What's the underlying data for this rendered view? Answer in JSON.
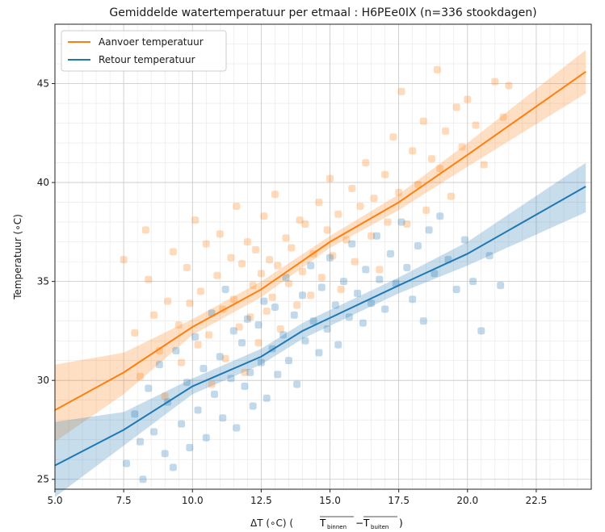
{
  "chart_data": {
    "type": "scatter",
    "title": "Gemiddelde watertemperatuur per etmaal : H6PEe0IX (n=336 stookdagen)",
    "xlabel": "ΔT (∘C) (T̅binnen − T̅buiten)",
    "xlabel_main": "ΔT (∘C) (",
    "xlabel_sub1": "binnen",
    "xlabel_sub2": "buiten",
    "ylabel": "Temperatuur (∘C)",
    "xlim": [
      5.0,
      24.5
    ],
    "ylim": [
      24.5,
      48.0
    ],
    "xticks": [
      "5.0",
      "7.5",
      "10.0",
      "12.5",
      "15.0",
      "17.5",
      "20.0",
      "22.5"
    ],
    "yticks": [
      "25",
      "30",
      "35",
      "40",
      "45"
    ],
    "grid": true,
    "minor_grid": true,
    "legend_position": "top-left",
    "colors": {
      "aanvoer": "#ff7f0e",
      "retour": "#1f77b4"
    },
    "series": [
      {
        "name": "Aanvoer temperatuur",
        "kind": "scatter+fit",
        "fit_line": {
          "x": [
            5.0,
            7.5,
            10.0,
            12.5,
            15.0,
            17.5,
            20.0,
            24.3
          ],
          "y": [
            28.5,
            30.4,
            32.7,
            34.6,
            37.0,
            39.0,
            41.4,
            45.6
          ]
        },
        "band_upper": [
          30.8,
          31.4,
          33.1,
          35.0,
          37.3,
          39.4,
          42.0,
          46.7
        ],
        "band_lower": [
          26.9,
          29.3,
          32.3,
          34.2,
          36.7,
          38.6,
          40.8,
          44.5
        ],
        "points": [
          [
            7.5,
            36.1
          ],
          [
            7.9,
            32.4
          ],
          [
            8.1,
            30.2
          ],
          [
            8.3,
            37.6
          ],
          [
            8.4,
            35.1
          ],
          [
            8.6,
            33.3
          ],
          [
            8.8,
            31.5
          ],
          [
            9.0,
            29.2
          ],
          [
            9.1,
            34.0
          ],
          [
            9.3,
            36.5
          ],
          [
            9.5,
            32.8
          ],
          [
            9.6,
            30.9
          ],
          [
            9.8,
            35.7
          ],
          [
            9.9,
            33.9
          ],
          [
            10.1,
            38.1
          ],
          [
            10.2,
            31.8
          ],
          [
            10.3,
            34.5
          ],
          [
            10.5,
            36.9
          ],
          [
            10.6,
            32.3
          ],
          [
            10.7,
            29.8
          ],
          [
            10.9,
            35.3
          ],
          [
            11.0,
            37.4
          ],
          [
            11.1,
            33.6
          ],
          [
            11.2,
            31.1
          ],
          [
            11.4,
            36.2
          ],
          [
            11.5,
            34.1
          ],
          [
            11.6,
            38.8
          ],
          [
            11.7,
            32.7
          ],
          [
            11.8,
            35.9
          ],
          [
            11.9,
            30.4
          ],
          [
            12.0,
            37.0
          ],
          [
            12.1,
            33.2
          ],
          [
            12.2,
            34.8
          ],
          [
            12.3,
            36.6
          ],
          [
            12.4,
            31.9
          ],
          [
            12.5,
            35.4
          ],
          [
            12.6,
            38.3
          ],
          [
            12.7,
            33.5
          ],
          [
            12.8,
            36.1
          ],
          [
            12.9,
            34.2
          ],
          [
            13.0,
            39.4
          ],
          [
            13.1,
            35.8
          ],
          [
            13.2,
            32.6
          ],
          [
            13.4,
            37.2
          ],
          [
            13.5,
            34.9
          ],
          [
            13.6,
            36.7
          ],
          [
            13.8,
            33.8
          ],
          [
            13.9,
            38.1
          ],
          [
            14.0,
            35.5
          ],
          [
            14.1,
            37.9
          ],
          [
            14.3,
            34.3
          ],
          [
            14.4,
            36.4
          ],
          [
            14.6,
            39.0
          ],
          [
            14.7,
            35.2
          ],
          [
            14.9,
            37.6
          ],
          [
            15.0,
            40.2
          ],
          [
            15.1,
            36.3
          ],
          [
            15.3,
            38.4
          ],
          [
            15.4,
            34.6
          ],
          [
            15.6,
            37.1
          ],
          [
            15.8,
            39.7
          ],
          [
            15.9,
            36.0
          ],
          [
            16.1,
            38.8
          ],
          [
            16.3,
            41.0
          ],
          [
            16.5,
            37.3
          ],
          [
            16.6,
            39.2
          ],
          [
            16.8,
            35.6
          ],
          [
            17.0,
            40.4
          ],
          [
            17.1,
            38.0
          ],
          [
            17.3,
            42.3
          ],
          [
            17.5,
            39.5
          ],
          [
            17.6,
            44.6
          ],
          [
            17.8,
            37.9
          ],
          [
            18.0,
            41.6
          ],
          [
            18.2,
            39.9
          ],
          [
            18.4,
            43.1
          ],
          [
            18.5,
            38.6
          ],
          [
            18.7,
            41.2
          ],
          [
            18.9,
            45.7
          ],
          [
            19.0,
            40.7
          ],
          [
            19.2,
            42.6
          ],
          [
            19.4,
            39.3
          ],
          [
            19.6,
            43.8
          ],
          [
            19.8,
            41.8
          ],
          [
            20.0,
            44.2
          ],
          [
            20.3,
            42.9
          ],
          [
            20.6,
            40.9
          ],
          [
            21.0,
            45.1
          ],
          [
            21.3,
            43.3
          ],
          [
            21.5,
            44.9
          ]
        ]
      },
      {
        "name": "Retour temperatuur",
        "kind": "scatter+fit",
        "fit_line": {
          "x": [
            5.0,
            7.5,
            10.0,
            12.5,
            14.0,
            17.5,
            20.0,
            24.3
          ],
          "y": [
            25.7,
            27.5,
            29.7,
            31.2,
            32.5,
            34.8,
            36.4,
            39.8
          ]
        },
        "band_upper": [
          27.9,
          28.4,
          30.1,
          31.6,
          32.9,
          35.2,
          37.0,
          41.0
        ],
        "band_lower": [
          24.1,
          26.7,
          29.3,
          30.8,
          32.1,
          34.4,
          35.8,
          38.5
        ],
        "points": [
          [
            7.6,
            25.8
          ],
          [
            7.9,
            28.3
          ],
          [
            8.1,
            26.9
          ],
          [
            8.2,
            25.0
          ],
          [
            8.4,
            29.6
          ],
          [
            8.6,
            27.4
          ],
          [
            8.8,
            30.8
          ],
          [
            9.0,
            26.3
          ],
          [
            9.1,
            28.9
          ],
          [
            9.3,
            25.6
          ],
          [
            9.4,
            31.5
          ],
          [
            9.6,
            27.8
          ],
          [
            9.8,
            29.9
          ],
          [
            9.9,
            26.6
          ],
          [
            10.1,
            32.2
          ],
          [
            10.2,
            28.5
          ],
          [
            10.4,
            30.6
          ],
          [
            10.5,
            27.1
          ],
          [
            10.7,
            33.4
          ],
          [
            10.8,
            29.3
          ],
          [
            11.0,
            31.2
          ],
          [
            11.1,
            28.1
          ],
          [
            11.2,
            34.6
          ],
          [
            11.4,
            30.1
          ],
          [
            11.5,
            32.5
          ],
          [
            11.6,
            27.6
          ],
          [
            11.8,
            31.9
          ],
          [
            11.9,
            29.7
          ],
          [
            12.0,
            33.1
          ],
          [
            12.1,
            30.4
          ],
          [
            12.2,
            28.7
          ],
          [
            12.4,
            32.8
          ],
          [
            12.5,
            30.9
          ],
          [
            12.6,
            34.0
          ],
          [
            12.7,
            29.1
          ],
          [
            12.9,
            31.6
          ],
          [
            13.0,
            33.7
          ],
          [
            13.1,
            30.3
          ],
          [
            13.3,
            32.3
          ],
          [
            13.4,
            35.2
          ],
          [
            13.5,
            31.0
          ],
          [
            13.7,
            33.3
          ],
          [
            13.8,
            29.8
          ],
          [
            14.0,
            34.3
          ],
          [
            14.1,
            32.0
          ],
          [
            14.3,
            35.8
          ],
          [
            14.4,
            33.0
          ],
          [
            14.6,
            31.4
          ],
          [
            14.7,
            34.7
          ],
          [
            14.9,
            32.6
          ],
          [
            15.0,
            36.2
          ],
          [
            15.2,
            33.8
          ],
          [
            15.3,
            31.8
          ],
          [
            15.5,
            35.0
          ],
          [
            15.7,
            33.2
          ],
          [
            15.8,
            36.9
          ],
          [
            16.0,
            34.4
          ],
          [
            16.2,
            32.9
          ],
          [
            16.3,
            35.6
          ],
          [
            16.5,
            33.9
          ],
          [
            16.7,
            37.3
          ],
          [
            16.8,
            35.1
          ],
          [
            17.0,
            33.6
          ],
          [
            17.2,
            36.4
          ],
          [
            17.4,
            34.9
          ],
          [
            17.6,
            38.0
          ],
          [
            17.8,
            35.7
          ],
          [
            18.0,
            34.1
          ],
          [
            18.2,
            36.8
          ],
          [
            18.4,
            33.0
          ],
          [
            18.6,
            37.6
          ],
          [
            18.8,
            35.4
          ],
          [
            19.0,
            38.3
          ],
          [
            19.3,
            36.1
          ],
          [
            19.6,
            34.6
          ],
          [
            19.9,
            37.1
          ],
          [
            20.2,
            35.0
          ],
          [
            20.5,
            32.5
          ],
          [
            20.8,
            36.3
          ],
          [
            21.2,
            34.8
          ]
        ]
      }
    ]
  }
}
